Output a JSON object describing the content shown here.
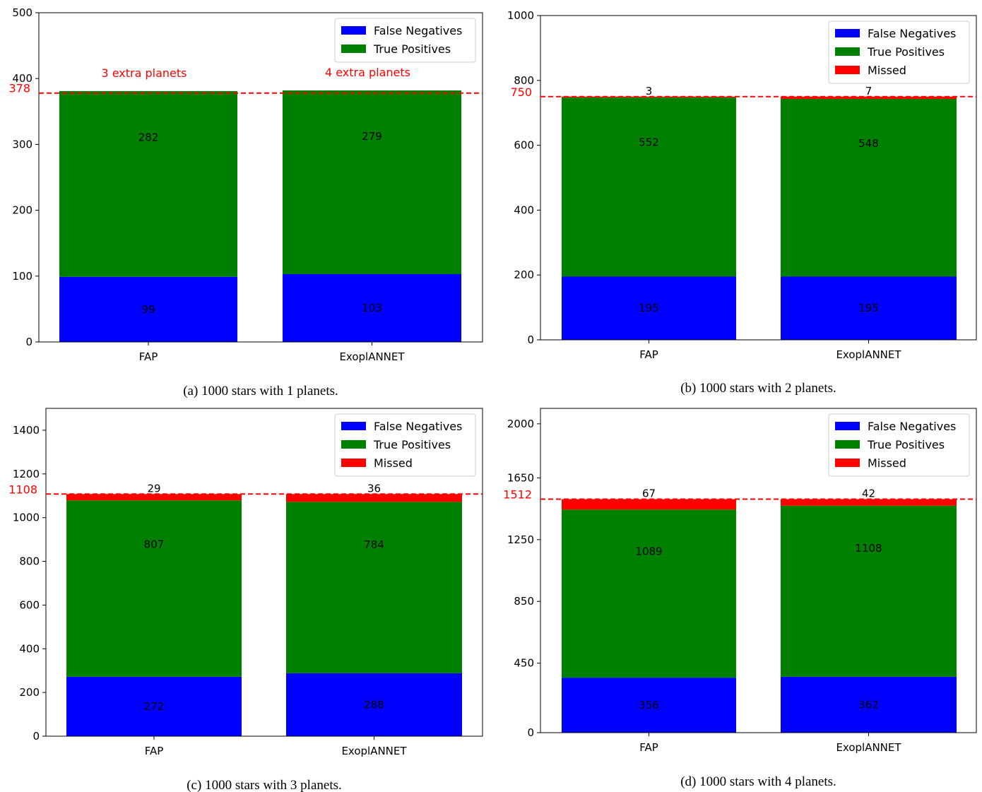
{
  "colors": {
    "false_negatives": "#0000ff",
    "true_positives": "#008000",
    "missed": "#ff0000",
    "reference_line": "#ff0000"
  },
  "chart_data": [
    {
      "type": "bar",
      "stacked": true,
      "caption": "(a) 1000 stars with 1 planets.",
      "categories": [
        "FAP",
        "ExoplANNET"
      ],
      "series": [
        {
          "name": "False Negatives",
          "values": [
            99,
            103
          ]
        },
        {
          "name": "True Positives",
          "values": [
            282,
            279
          ]
        }
      ],
      "ylim": [
        0,
        500
      ],
      "yticks": [
        0,
        100,
        200,
        300,
        400,
        500
      ],
      "reference_line": {
        "value": 378,
        "label": "378"
      },
      "top_labels": [
        "3 extra planets",
        "4 extra planets"
      ],
      "legend": "top-right"
    },
    {
      "type": "bar",
      "stacked": true,
      "caption": "(b) 1000 stars with 2 planets.",
      "categories": [
        "FAP",
        "ExoplANNET"
      ],
      "series": [
        {
          "name": "False Negatives",
          "values": [
            195,
            195
          ]
        },
        {
          "name": "True Positives",
          "values": [
            552,
            548
          ]
        },
        {
          "name": "Missed",
          "values": [
            3,
            7
          ]
        }
      ],
      "ylim": [
        0,
        1000
      ],
      "yticks": [
        0,
        200,
        400,
        600,
        800,
        1000
      ],
      "reference_line": {
        "value": 750,
        "label": "750"
      },
      "top_labels": [
        "3",
        "7"
      ],
      "legend": "top-right"
    },
    {
      "type": "bar",
      "stacked": true,
      "caption": "(c) 1000 stars with 3 planets.",
      "categories": [
        "FAP",
        "ExoplANNET"
      ],
      "series": [
        {
          "name": "False Negatives",
          "values": [
            272,
            288
          ]
        },
        {
          "name": "True Positives",
          "values": [
            807,
            784
          ]
        },
        {
          "name": "Missed",
          "values": [
            29,
            36
          ]
        }
      ],
      "ylim": [
        0,
        1500
      ],
      "yticks": [
        0,
        200,
        400,
        600,
        800,
        1000,
        1200,
        1400
      ],
      "reference_line": {
        "value": 1108,
        "label": "1108"
      },
      "top_labels": [
        "29",
        "36"
      ],
      "legend": "top-right"
    },
    {
      "type": "bar",
      "stacked": true,
      "caption": "(d) 1000 stars with 4 planets.",
      "categories": [
        "FAP",
        "ExoplANNET"
      ],
      "series": [
        {
          "name": "False Negatives",
          "values": [
            356,
            362
          ]
        },
        {
          "name": "True Positives",
          "values": [
            1089,
            1108
          ]
        },
        {
          "name": "Missed",
          "values": [
            67,
            42
          ]
        }
      ],
      "ylim": [
        0,
        2100
      ],
      "yticks": [
        0,
        450,
        850,
        1250,
        1650,
        2000
      ],
      "reference_line": {
        "value": 1512,
        "label": "1512"
      },
      "top_labels": [
        "67",
        "42"
      ],
      "legend": "top-right"
    }
  ]
}
